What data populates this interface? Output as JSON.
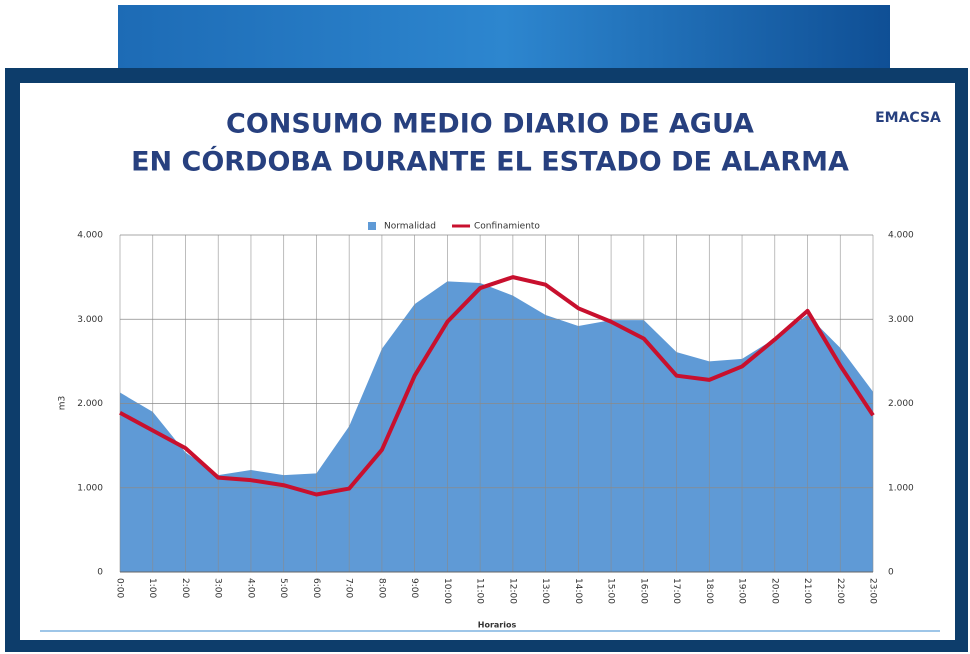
{
  "chart_data": {
    "type": "line",
    "title": [
      "CONSUMO MEDIO DIARIO DE AGUA",
      "EN CÓRDOBA DURANTE EL ESTADO DE ALARMA"
    ],
    "logo": "EMACSA",
    "y_label": "m3",
    "x_label": "Horarios",
    "categories": [
      "0:00",
      "1:00",
      "2:00",
      "3:00",
      "4:00",
      "5:00",
      "6:00",
      "7:00",
      "8:00",
      "9:00",
      "10:00",
      "11:00",
      "12:00",
      "13:00",
      "14:00",
      "15:00",
      "16:00",
      "17:00",
      "18:00",
      "19:00",
      "20:00",
      "21:00",
      "22:00",
      "23:00"
    ],
    "series": [
      {
        "name": "Normalidad",
        "type": "area",
        "color": "#5f9ad6",
        "values": [
          2130,
          1900,
          1420,
          1150,
          1210,
          1150,
          1170,
          1730,
          2650,
          3180,
          3450,
          3430,
          3280,
          3050,
          2920,
          2990,
          2990,
          2610,
          2500,
          2530,
          2770,
          3050,
          2660,
          2140
        ]
      },
      {
        "name": "Confinamiento",
        "type": "line",
        "color": "#c8102e",
        "values": [
          1890,
          1680,
          1470,
          1120,
          1090,
          1030,
          920,
          990,
          1450,
          2330,
          2970,
          3370,
          3500,
          3410,
          3130,
          2970,
          2770,
          2330,
          2280,
          2440,
          2760,
          3100,
          2450,
          1860
        ]
      }
    ],
    "ylim": [
      0,
      4000
    ],
    "yticks": [
      0,
      {
        "value": 1000,
        "label": "1.000"
      },
      {
        "value": 2000,
        "label": "2.000"
      },
      {
        "value": 3000,
        "label": "3.000"
      },
      {
        "value": 4000,
        "label": "4.000"
      }
    ],
    "y2lim": [
      0,
      4000
    ],
    "y2ticks": [
      0,
      {
        "value": 1000,
        "label": "1.000"
      },
      {
        "value": 2000,
        "label": "2.000"
      },
      {
        "value": 3000,
        "label": "3.000"
      },
      {
        "value": 4000,
        "label": "4.000"
      }
    ],
    "grid": true,
    "legend": "top"
  }
}
